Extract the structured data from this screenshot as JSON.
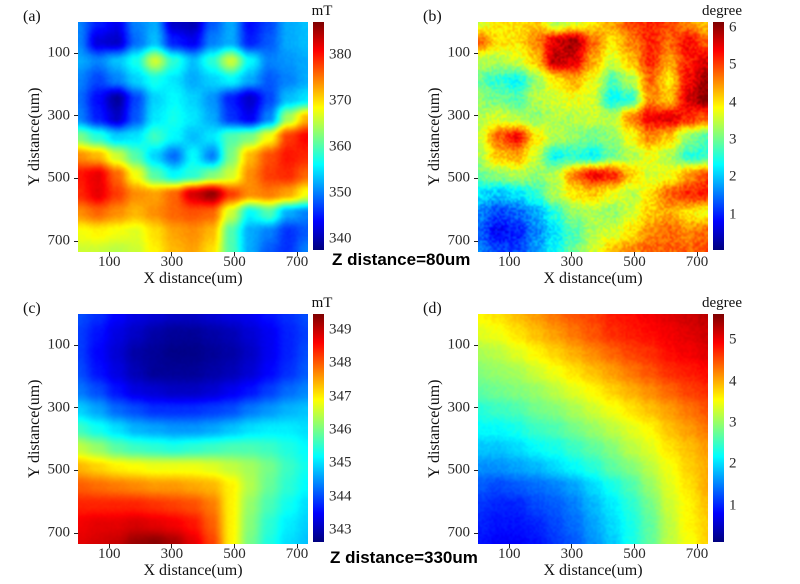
{
  "figure": {
    "background": "#ffffff",
    "captions": [
      {
        "id": "top-row",
        "text": "Z distance=80um"
      },
      {
        "id": "bottom-row",
        "text": "Z distance=330um"
      }
    ]
  },
  "chart_data": [
    {
      "id": "a",
      "label": "(a)",
      "type": "heatmap",
      "colormap": "jet",
      "xlabel": "X distance(um)",
      "ylabel": "Y distance(um)",
      "x_ticks": [
        100,
        300,
        500,
        700
      ],
      "y_ticks": [
        100,
        300,
        500,
        700
      ],
      "x_range": [
        0,
        735
      ],
      "y_range": [
        0,
        735
      ],
      "noise": 0.6,
      "colorbar": {
        "unit": "mT",
        "ticks": [
          380,
          370,
          360,
          350,
          340
        ],
        "vmin": 337.5,
        "vmax": 387.1
      },
      "grid": [
        [
          350,
          345,
          343,
          350,
          352,
          341,
          340,
          348,
          352,
          344,
          347,
          352,
          353
        ],
        [
          350,
          342,
          341,
          349,
          353,
          345,
          343,
          350,
          352,
          345,
          348,
          352,
          353
        ],
        [
          352,
          350,
          353,
          357,
          366,
          358,
          353,
          358,
          366,
          356,
          350,
          351,
          352
        ],
        [
          350,
          347,
          350,
          354,
          357,
          355,
          352,
          354,
          356,
          352,
          348,
          350,
          352
        ],
        [
          349,
          344,
          339,
          347,
          354,
          356,
          354,
          351,
          345,
          341,
          347,
          353,
          355
        ],
        [
          350,
          345,
          341,
          348,
          355,
          357,
          355,
          352,
          346,
          343,
          350,
          364,
          372
        ],
        [
          362,
          358,
          354,
          355,
          359,
          356,
          353,
          355,
          360,
          362,
          368,
          378,
          381
        ],
        [
          374,
          372,
          366,
          360,
          354,
          349,
          356,
          350,
          362,
          372,
          377,
          380,
          379
        ],
        [
          380,
          382,
          376,
          368,
          360,
          356,
          358,
          362,
          366,
          374,
          378,
          379,
          376
        ],
        [
          379,
          382,
          378,
          374,
          373,
          376,
          383,
          386,
          378,
          374,
          375,
          373,
          368
        ],
        [
          374,
          376,
          374,
          372,
          374,
          376,
          377,
          376,
          366,
          356,
          360,
          352,
          350
        ],
        [
          368,
          369,
          368,
          367,
          370,
          373,
          374,
          372,
          360,
          352,
          350,
          346,
          348
        ],
        [
          366,
          366,
          365,
          366,
          369,
          372,
          373,
          370,
          360,
          352,
          348,
          346,
          350
        ]
      ]
    },
    {
      "id": "b",
      "label": "(b)",
      "type": "heatmap",
      "colormap": "jet",
      "xlabel": "X distance(um)",
      "ylabel": "Y distance(um)",
      "x_ticks": [
        100,
        300,
        500,
        700
      ],
      "y_ticks": [
        100,
        300,
        500,
        700
      ],
      "x_range": [
        0,
        735
      ],
      "y_range": [
        0,
        735
      ],
      "noise": 0.5,
      "colorbar": {
        "unit": "degree",
        "ticks": [
          6,
          5,
          4,
          3,
          2,
          1
        ],
        "vmin": 0.06,
        "vmax": 6.16
      },
      "grid": [
        [
          3.6,
          4.0,
          4.0,
          4.2,
          3.4,
          3.6,
          4.0,
          4.4,
          5.0,
          5.2,
          5.0,
          4.6,
          4.2
        ],
        [
          4.8,
          4.0,
          4.0,
          4.6,
          5.6,
          6.0,
          4.8,
          4.0,
          4.6,
          5.2,
          4.8,
          5.4,
          4.8
        ],
        [
          3.4,
          3.4,
          3.6,
          4.2,
          5.8,
          5.6,
          4.4,
          3.6,
          4.2,
          5.2,
          4.4,
          5.2,
          5.6
        ],
        [
          3.0,
          2.6,
          2.4,
          3.2,
          4.0,
          4.4,
          3.8,
          2.8,
          3.4,
          4.8,
          4.0,
          5.4,
          6.0
        ],
        [
          3.2,
          3.0,
          2.8,
          3.4,
          3.6,
          3.8,
          3.6,
          2.4,
          2.6,
          4.6,
          4.2,
          5.6,
          6.2
        ],
        [
          3.4,
          3.6,
          3.4,
          3.2,
          3.4,
          3.4,
          3.6,
          3.4,
          4.6,
          5.4,
          5.6,
          5.2,
          4.8
        ],
        [
          3.6,
          4.8,
          5.4,
          4.0,
          3.4,
          3.2,
          3.0,
          3.2,
          3.8,
          4.6,
          4.2,
          3.2,
          2.8
        ],
        [
          3.4,
          4.2,
          4.4,
          3.6,
          2.4,
          2.6,
          2.4,
          3.0,
          3.4,
          3.8,
          3.4,
          2.6,
          2.6
        ],
        [
          3.0,
          3.2,
          3.4,
          3.2,
          3.4,
          4.6,
          5.4,
          5.2,
          4.2,
          3.6,
          3.8,
          4.4,
          5.0
        ],
        [
          2.2,
          2.0,
          2.2,
          2.6,
          3.4,
          4.0,
          4.2,
          3.8,
          3.4,
          4.0,
          4.8,
          5.2,
          5.2
        ],
        [
          1.6,
          1.2,
          1.4,
          1.8,
          2.6,
          3.2,
          3.4,
          3.2,
          3.6,
          4.2,
          4.4,
          4.0,
          3.8
        ],
        [
          1.4,
          0.8,
          1.0,
          1.6,
          2.2,
          2.8,
          3.4,
          3.6,
          4.0,
          4.6,
          4.8,
          4.6,
          4.8
        ],
        [
          1.6,
          1.2,
          1.2,
          1.8,
          2.4,
          3.0,
          3.6,
          4.2,
          4.6,
          4.8,
          4.8,
          4.8,
          5.0
        ]
      ]
    },
    {
      "id": "c",
      "label": "(c)",
      "type": "heatmap",
      "colormap": "jet",
      "xlabel": "X distance(um)",
      "ylabel": "Y distance(um)",
      "x_ticks": [
        100,
        300,
        500,
        700
      ],
      "y_ticks": [
        100,
        300,
        500,
        700
      ],
      "x_range": [
        0,
        735
      ],
      "y_range": [
        0,
        735
      ],
      "noise": 0.05,
      "colorbar": {
        "unit": "mT",
        "ticks": [
          349,
          348,
          347,
          346,
          345,
          344,
          343
        ],
        "vmin": 342.64,
        "vmax": 349.48
      },
      "grid": [
        [
          344.0,
          343.8,
          343.5,
          343.3,
          343.2,
          343.1,
          343.1,
          343.2,
          343.3,
          343.4,
          343.6,
          343.8,
          344.0
        ],
        [
          343.9,
          343.6,
          343.3,
          343.1,
          342.9,
          342.8,
          342.8,
          342.9,
          343.0,
          343.2,
          343.4,
          343.7,
          343.9
        ],
        [
          343.9,
          343.5,
          343.2,
          342.9,
          342.8,
          342.7,
          342.7,
          342.8,
          342.9,
          343.1,
          343.4,
          343.7,
          344.0
        ],
        [
          344.0,
          343.6,
          343.3,
          343.0,
          342.8,
          342.8,
          342.8,
          342.9,
          343.0,
          343.2,
          343.5,
          343.8,
          344.1
        ],
        [
          344.3,
          344.0,
          343.6,
          343.3,
          343.2,
          343.1,
          343.1,
          343.2,
          343.4,
          343.6,
          343.9,
          344.2,
          344.4
        ],
        [
          344.9,
          344.6,
          344.2,
          344.0,
          343.8,
          343.8,
          343.8,
          343.9,
          344.0,
          344.3,
          344.5,
          344.7,
          344.8
        ],
        [
          345.6,
          345.3,
          345.0,
          344.7,
          344.6,
          344.5,
          344.5,
          344.6,
          344.8,
          345.0,
          345.1,
          345.1,
          345.0
        ],
        [
          346.5,
          346.2,
          345.8,
          345.6,
          345.5,
          345.4,
          345.5,
          345.6,
          345.7,
          345.7,
          345.6,
          345.4,
          345.2
        ],
        [
          347.4,
          347.2,
          347.0,
          346.9,
          346.8,
          346.8,
          346.8,
          346.7,
          346.5,
          346.3,
          346.0,
          345.6,
          345.3
        ],
        [
          348.0,
          347.9,
          347.8,
          347.7,
          347.6,
          347.6,
          347.5,
          347.4,
          347.0,
          346.4,
          345.9,
          345.5,
          345.2
        ],
        [
          348.4,
          348.4,
          348.4,
          348.4,
          348.3,
          348.2,
          348.1,
          347.8,
          347.0,
          346.2,
          345.7,
          345.3,
          345.0
        ],
        [
          348.7,
          348.8,
          348.8,
          348.9,
          348.8,
          348.7,
          348.5,
          348.0,
          347.0,
          346.1,
          345.5,
          345.1,
          344.9
        ],
        [
          348.8,
          348.9,
          349.0,
          349.3,
          349.4,
          349.2,
          348.8,
          348.2,
          347.0,
          346.0,
          345.4,
          345.0,
          344.8
        ]
      ]
    },
    {
      "id": "d",
      "label": "(d)",
      "type": "heatmap",
      "colormap": "jet",
      "xlabel": "X distance(um)",
      "ylabel": "Y distance(um)",
      "x_ticks": [
        100,
        300,
        500,
        700
      ],
      "y_ticks": [
        100,
        300,
        500,
        700
      ],
      "x_range": [
        0,
        735
      ],
      "y_range": [
        0,
        735
      ],
      "noise": 0.12,
      "colorbar": {
        "unit": "degree",
        "ticks": [
          5,
          4,
          3,
          2,
          1
        ],
        "vmin": 0.13,
        "vmax": 5.63
      },
      "grid": [
        [
          3.6,
          3.7,
          3.9,
          4.1,
          4.3,
          4.5,
          4.6,
          4.8,
          4.9,
          5.0,
          5.1,
          5.2,
          5.3
        ],
        [
          3.4,
          3.5,
          3.7,
          3.9,
          4.1,
          4.3,
          4.5,
          4.7,
          4.8,
          4.9,
          5.0,
          5.1,
          5.2
        ],
        [
          3.1,
          3.2,
          3.4,
          3.6,
          3.8,
          4.0,
          4.2,
          4.4,
          4.6,
          4.7,
          4.9,
          5.0,
          5.1
        ],
        [
          2.9,
          3.0,
          3.1,
          3.3,
          3.5,
          3.7,
          3.9,
          4.1,
          4.3,
          4.5,
          4.7,
          4.8,
          4.9
        ],
        [
          2.7,
          2.8,
          2.9,
          3.0,
          3.2,
          3.4,
          3.6,
          3.8,
          4.0,
          4.2,
          4.4,
          4.6,
          4.7
        ],
        [
          2.4,
          2.5,
          2.6,
          2.8,
          2.9,
          3.1,
          3.3,
          3.5,
          3.7,
          3.9,
          4.1,
          4.3,
          4.5
        ],
        [
          2.2,
          2.2,
          2.3,
          2.5,
          2.6,
          2.8,
          3.0,
          3.2,
          3.4,
          3.6,
          3.9,
          4.1,
          4.3
        ],
        [
          1.9,
          1.9,
          2.0,
          2.2,
          2.3,
          2.5,
          2.7,
          2.9,
          3.2,
          3.4,
          3.7,
          3.9,
          4.1
        ],
        [
          1.6,
          1.6,
          1.7,
          1.8,
          2.0,
          2.2,
          2.4,
          2.7,
          2.9,
          3.2,
          3.5,
          3.8,
          4.0
        ],
        [
          1.3,
          1.2,
          1.3,
          1.4,
          1.5,
          1.7,
          2.0,
          2.3,
          2.6,
          3.0,
          3.4,
          3.7,
          4.0
        ],
        [
          1.1,
          1.0,
          1.0,
          1.2,
          1.3,
          1.5,
          1.8,
          2.1,
          2.4,
          2.8,
          3.3,
          3.6,
          3.9
        ],
        [
          1.0,
          0.9,
          0.9,
          1.0,
          1.2,
          1.4,
          1.7,
          2.0,
          2.3,
          2.7,
          3.2,
          3.6,
          3.8
        ],
        [
          0.9,
          0.8,
          0.8,
          0.9,
          1.1,
          1.3,
          1.6,
          1.9,
          2.3,
          2.7,
          3.2,
          3.5,
          3.8
        ]
      ]
    }
  ]
}
